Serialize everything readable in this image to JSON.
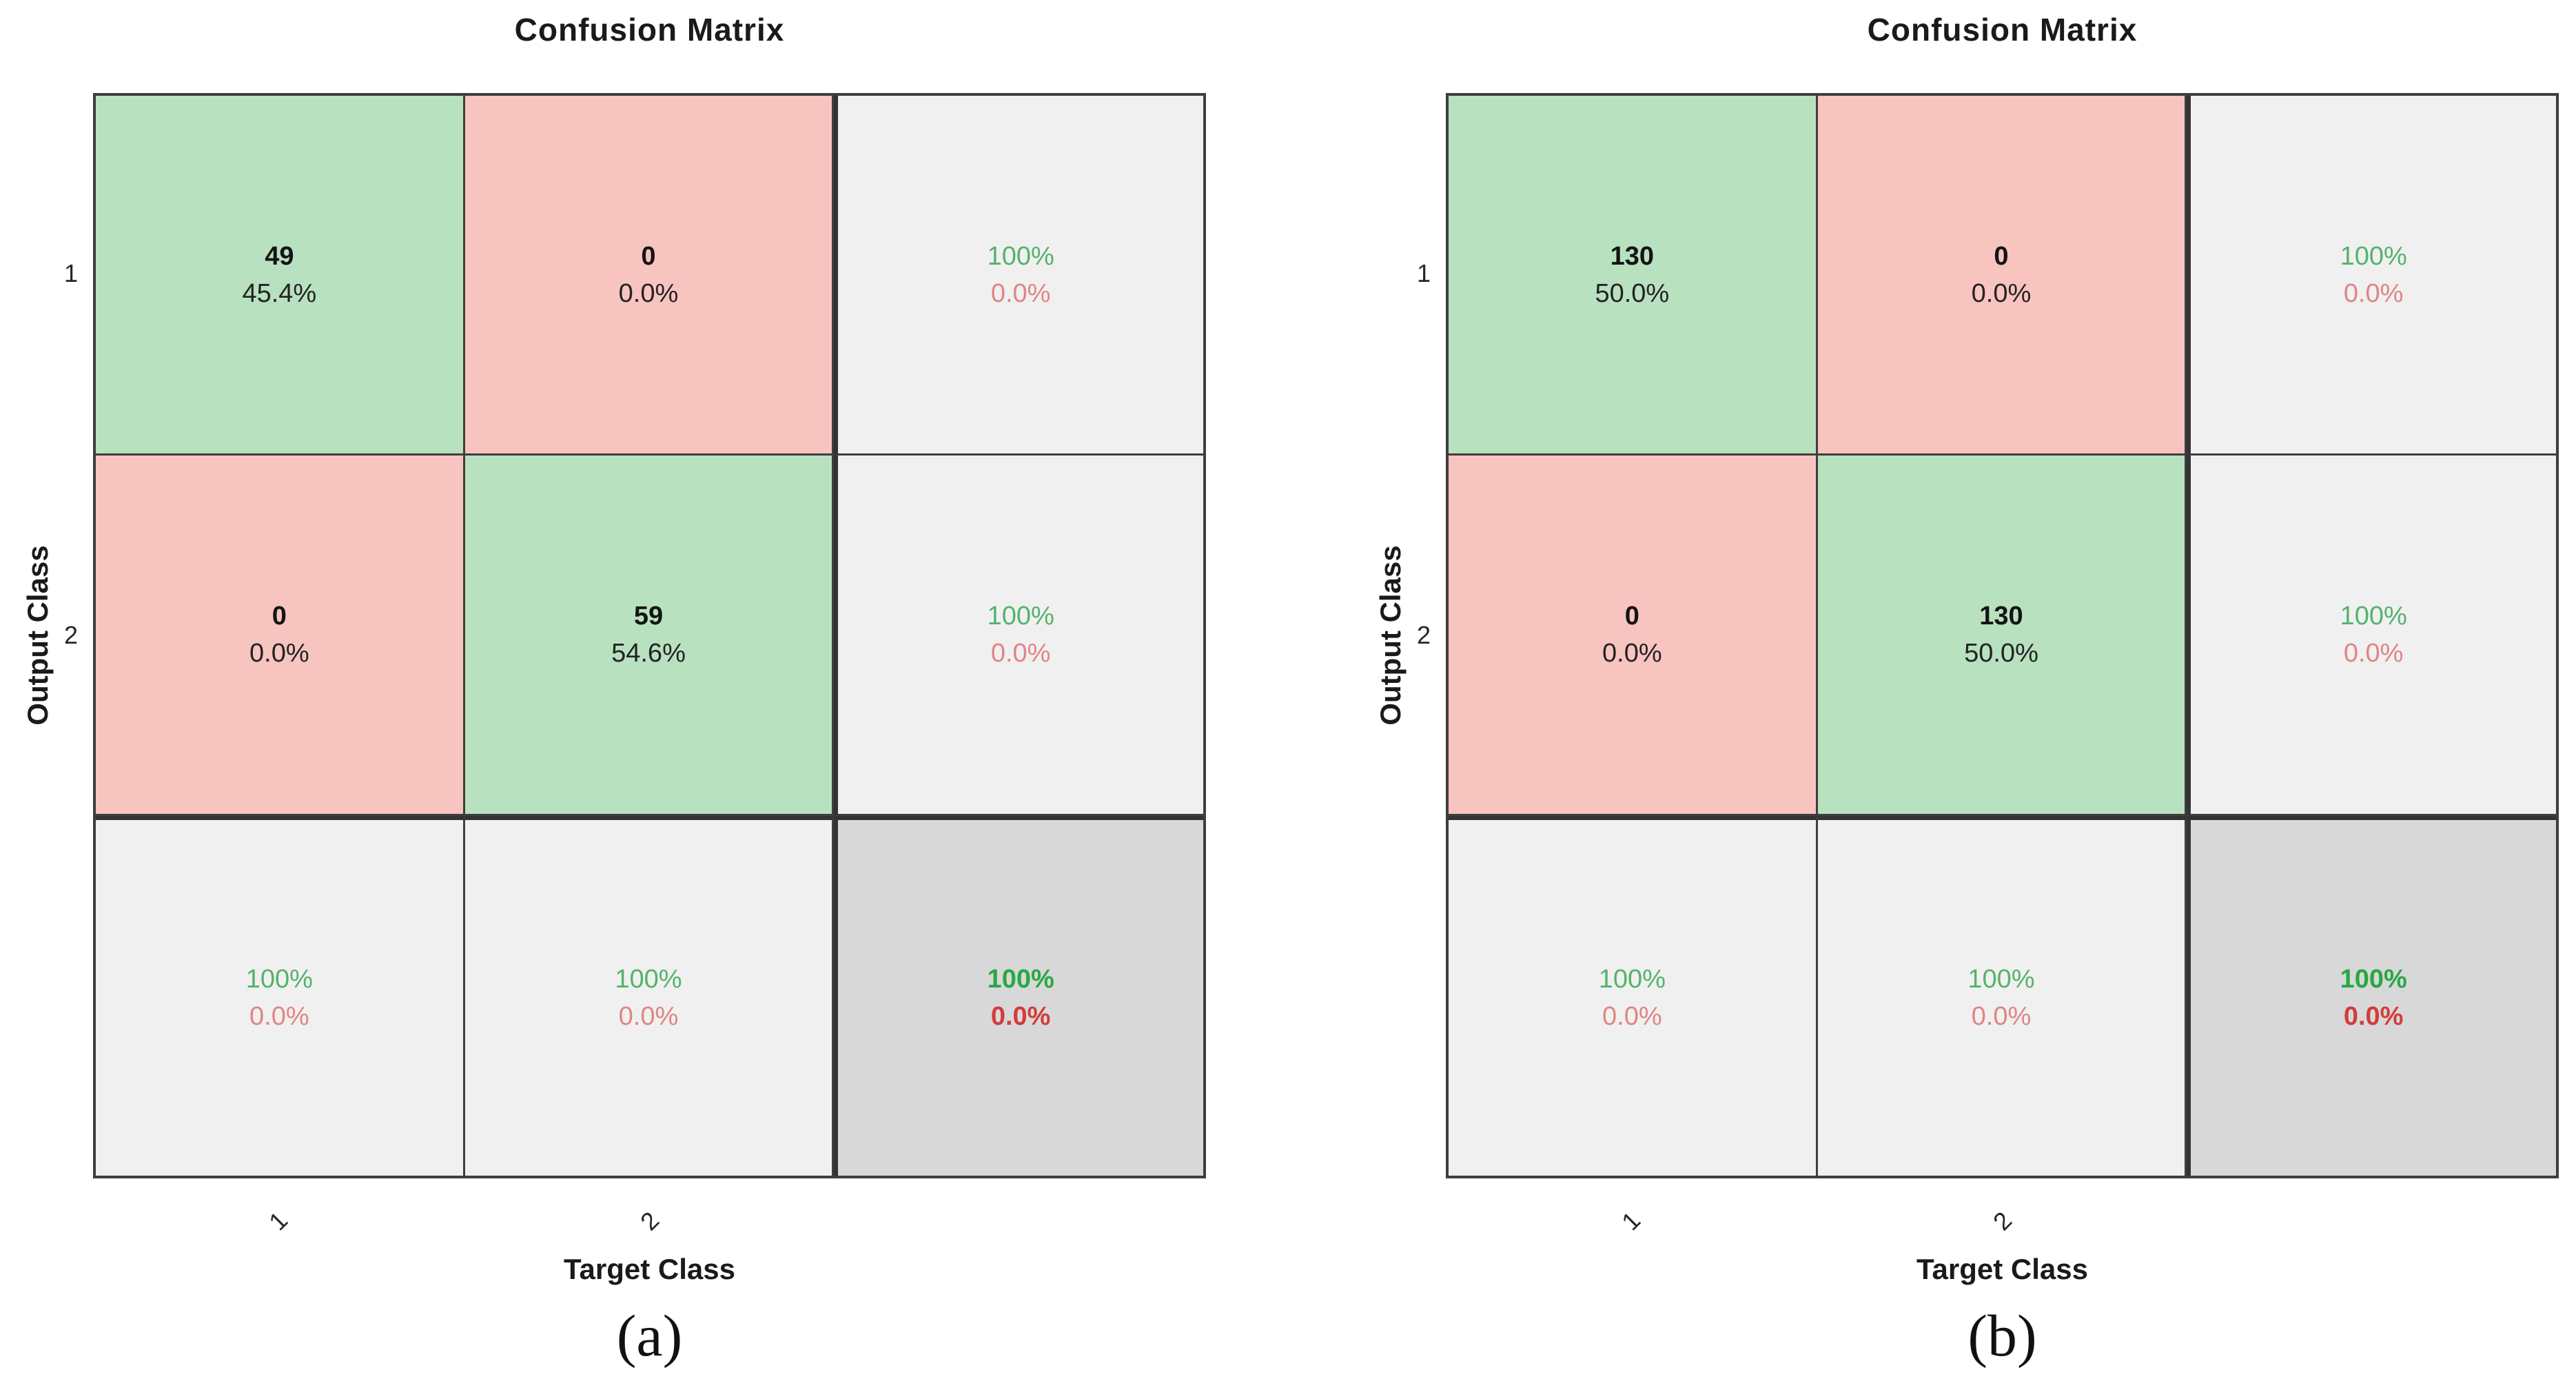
{
  "figure": {
    "type": "matlab-plotconfusion-figure",
    "background": "#ffffff"
  },
  "colors": {
    "correct_cell_green": "#b8e1c0",
    "incorrect_cell_pink": "#f8c4c0",
    "summary_cell_gray": "#f0f0f0",
    "total_cell_dark_gray": "#d8d8d8",
    "grid_line": "#3e3e3e",
    "positive_text_green": "#54b36b",
    "negative_text_red": "#e08583",
    "corner_positive_green": "#28a844",
    "corner_negative_red": "#d33c3a",
    "cell_text_black": "#141414"
  },
  "panels": [
    {
      "title": "Confusion Matrix",
      "caption": "(a)",
      "y_label": "Output Class",
      "x_label": "Target Class",
      "y_ticks": [
        "1",
        "2"
      ],
      "x_ticks": [
        "1",
        "2"
      ],
      "cells": {
        "r1c1": {
          "line1": "49",
          "line2": "45.4%"
        },
        "r1c2": {
          "line1": "0",
          "line2": "0.0%"
        },
        "r1c3": {
          "line1": "100%",
          "line2": "0.0%"
        },
        "r2c1": {
          "line1": "0",
          "line2": "0.0%"
        },
        "r2c2": {
          "line1": "59",
          "line2": "54.6%"
        },
        "r2c3": {
          "line1": "100%",
          "line2": "0.0%"
        },
        "r3c1": {
          "line1": "100%",
          "line2": "0.0%"
        },
        "r3c2": {
          "line1": "100%",
          "line2": "0.0%"
        },
        "r3c3": {
          "line1": "100%",
          "line2": "0.0%"
        }
      }
    },
    {
      "title": "Confusion Matrix",
      "caption": "(b)",
      "y_label": "Output Class",
      "x_label": "Target Class",
      "y_ticks": [
        "1",
        "2"
      ],
      "x_ticks": [
        "1",
        "2"
      ],
      "cells": {
        "r1c1": {
          "line1": "130",
          "line2": "50.0%"
        },
        "r1c2": {
          "line1": "0",
          "line2": "0.0%"
        },
        "r1c3": {
          "line1": "100%",
          "line2": "0.0%"
        },
        "r2c1": {
          "line1": "0",
          "line2": "0.0%"
        },
        "r2c2": {
          "line1": "130",
          "line2": "50.0%"
        },
        "r2c3": {
          "line1": "100%",
          "line2": "0.0%"
        },
        "r3c1": {
          "line1": "100%",
          "line2": "0.0%"
        },
        "r3c2": {
          "line1": "100%",
          "line2": "0.0%"
        },
        "r3c3": {
          "line1": "100%",
          "line2": "0.0%"
        }
      }
    }
  ],
  "chart_data": [
    {
      "type": "heatmap",
      "subtype": "confusion-matrix",
      "title": "Confusion Matrix",
      "xlabel": "Target Class",
      "ylabel": "Output Class",
      "caption": "(a)",
      "classes": [
        "1",
        "2"
      ],
      "matrix_counts": [
        [
          49,
          0
        ],
        [
          0,
          59
        ]
      ],
      "matrix_percent_of_total": [
        [
          "45.4%",
          "0.0%"
        ],
        [
          "0.0%",
          "54.6%"
        ]
      ],
      "row_summary_pos_neg": [
        [
          "100%",
          "0.0%"
        ],
        [
          "100%",
          "0.0%"
        ]
      ],
      "col_summary_pos_neg": [
        [
          "100%",
          "0.0%"
        ],
        [
          "100%",
          "0.0%"
        ]
      ],
      "overall_accuracy_error": [
        "100%",
        "0.0%"
      ],
      "legend_position": "none",
      "grid": true
    },
    {
      "type": "heatmap",
      "subtype": "confusion-matrix",
      "title": "Confusion Matrix",
      "xlabel": "Target Class",
      "ylabel": "Output Class",
      "caption": "(b)",
      "classes": [
        "1",
        "2"
      ],
      "matrix_counts": [
        [
          130,
          0
        ],
        [
          0,
          130
        ]
      ],
      "matrix_percent_of_total": [
        [
          "50.0%",
          "0.0%"
        ],
        [
          "0.0%",
          "50.0%"
        ]
      ],
      "row_summary_pos_neg": [
        [
          "100%",
          "0.0%"
        ],
        [
          "100%",
          "0.0%"
        ]
      ],
      "col_summary_pos_neg": [
        [
          "100%",
          "0.0%"
        ],
        [
          "100%",
          "0.0%"
        ]
      ],
      "overall_accuracy_error": [
        "100%",
        "0.0%"
      ],
      "legend_position": "none",
      "grid": true
    }
  ]
}
